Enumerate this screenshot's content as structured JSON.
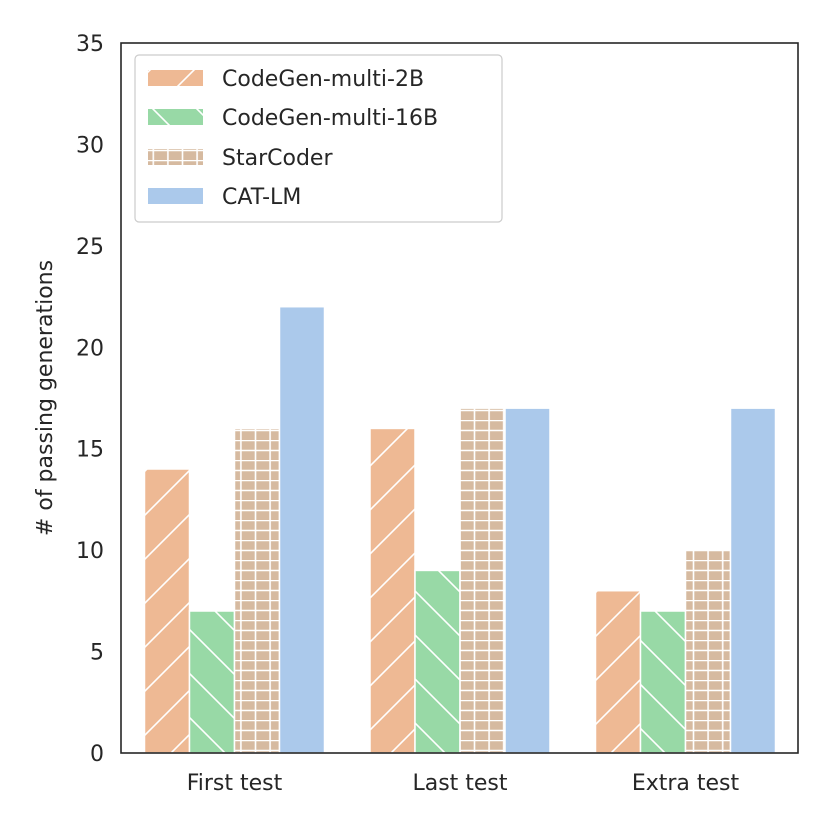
{
  "chart_data": {
    "type": "bar",
    "title": "",
    "xlabel": "",
    "ylabel": "# of passing generations",
    "ylim": [
      0,
      35
    ],
    "yticks": [
      0,
      5,
      10,
      15,
      20,
      25,
      30,
      35
    ],
    "grid": false,
    "legend_position": "top-left",
    "categories": [
      "First test",
      "Last test",
      "Extra test"
    ],
    "series": [
      {
        "name": "CodeGen-multi-2B",
        "values": [
          14,
          16,
          8
        ],
        "color": "#EEB994",
        "hatch": "diagonal"
      },
      {
        "name": "CodeGen-multi-16B",
        "values": [
          7,
          9,
          7
        ],
        "color": "#98D9A6",
        "hatch": "backslash"
      },
      {
        "name": "StarCoder",
        "values": [
          16,
          17,
          10
        ],
        "color": "#D6BAA0",
        "hatch": "grid"
      },
      {
        "name": "CAT-LM",
        "values": [
          22,
          17,
          17
        ],
        "color": "#ABC9EB",
        "hatch": "none"
      }
    ]
  }
}
